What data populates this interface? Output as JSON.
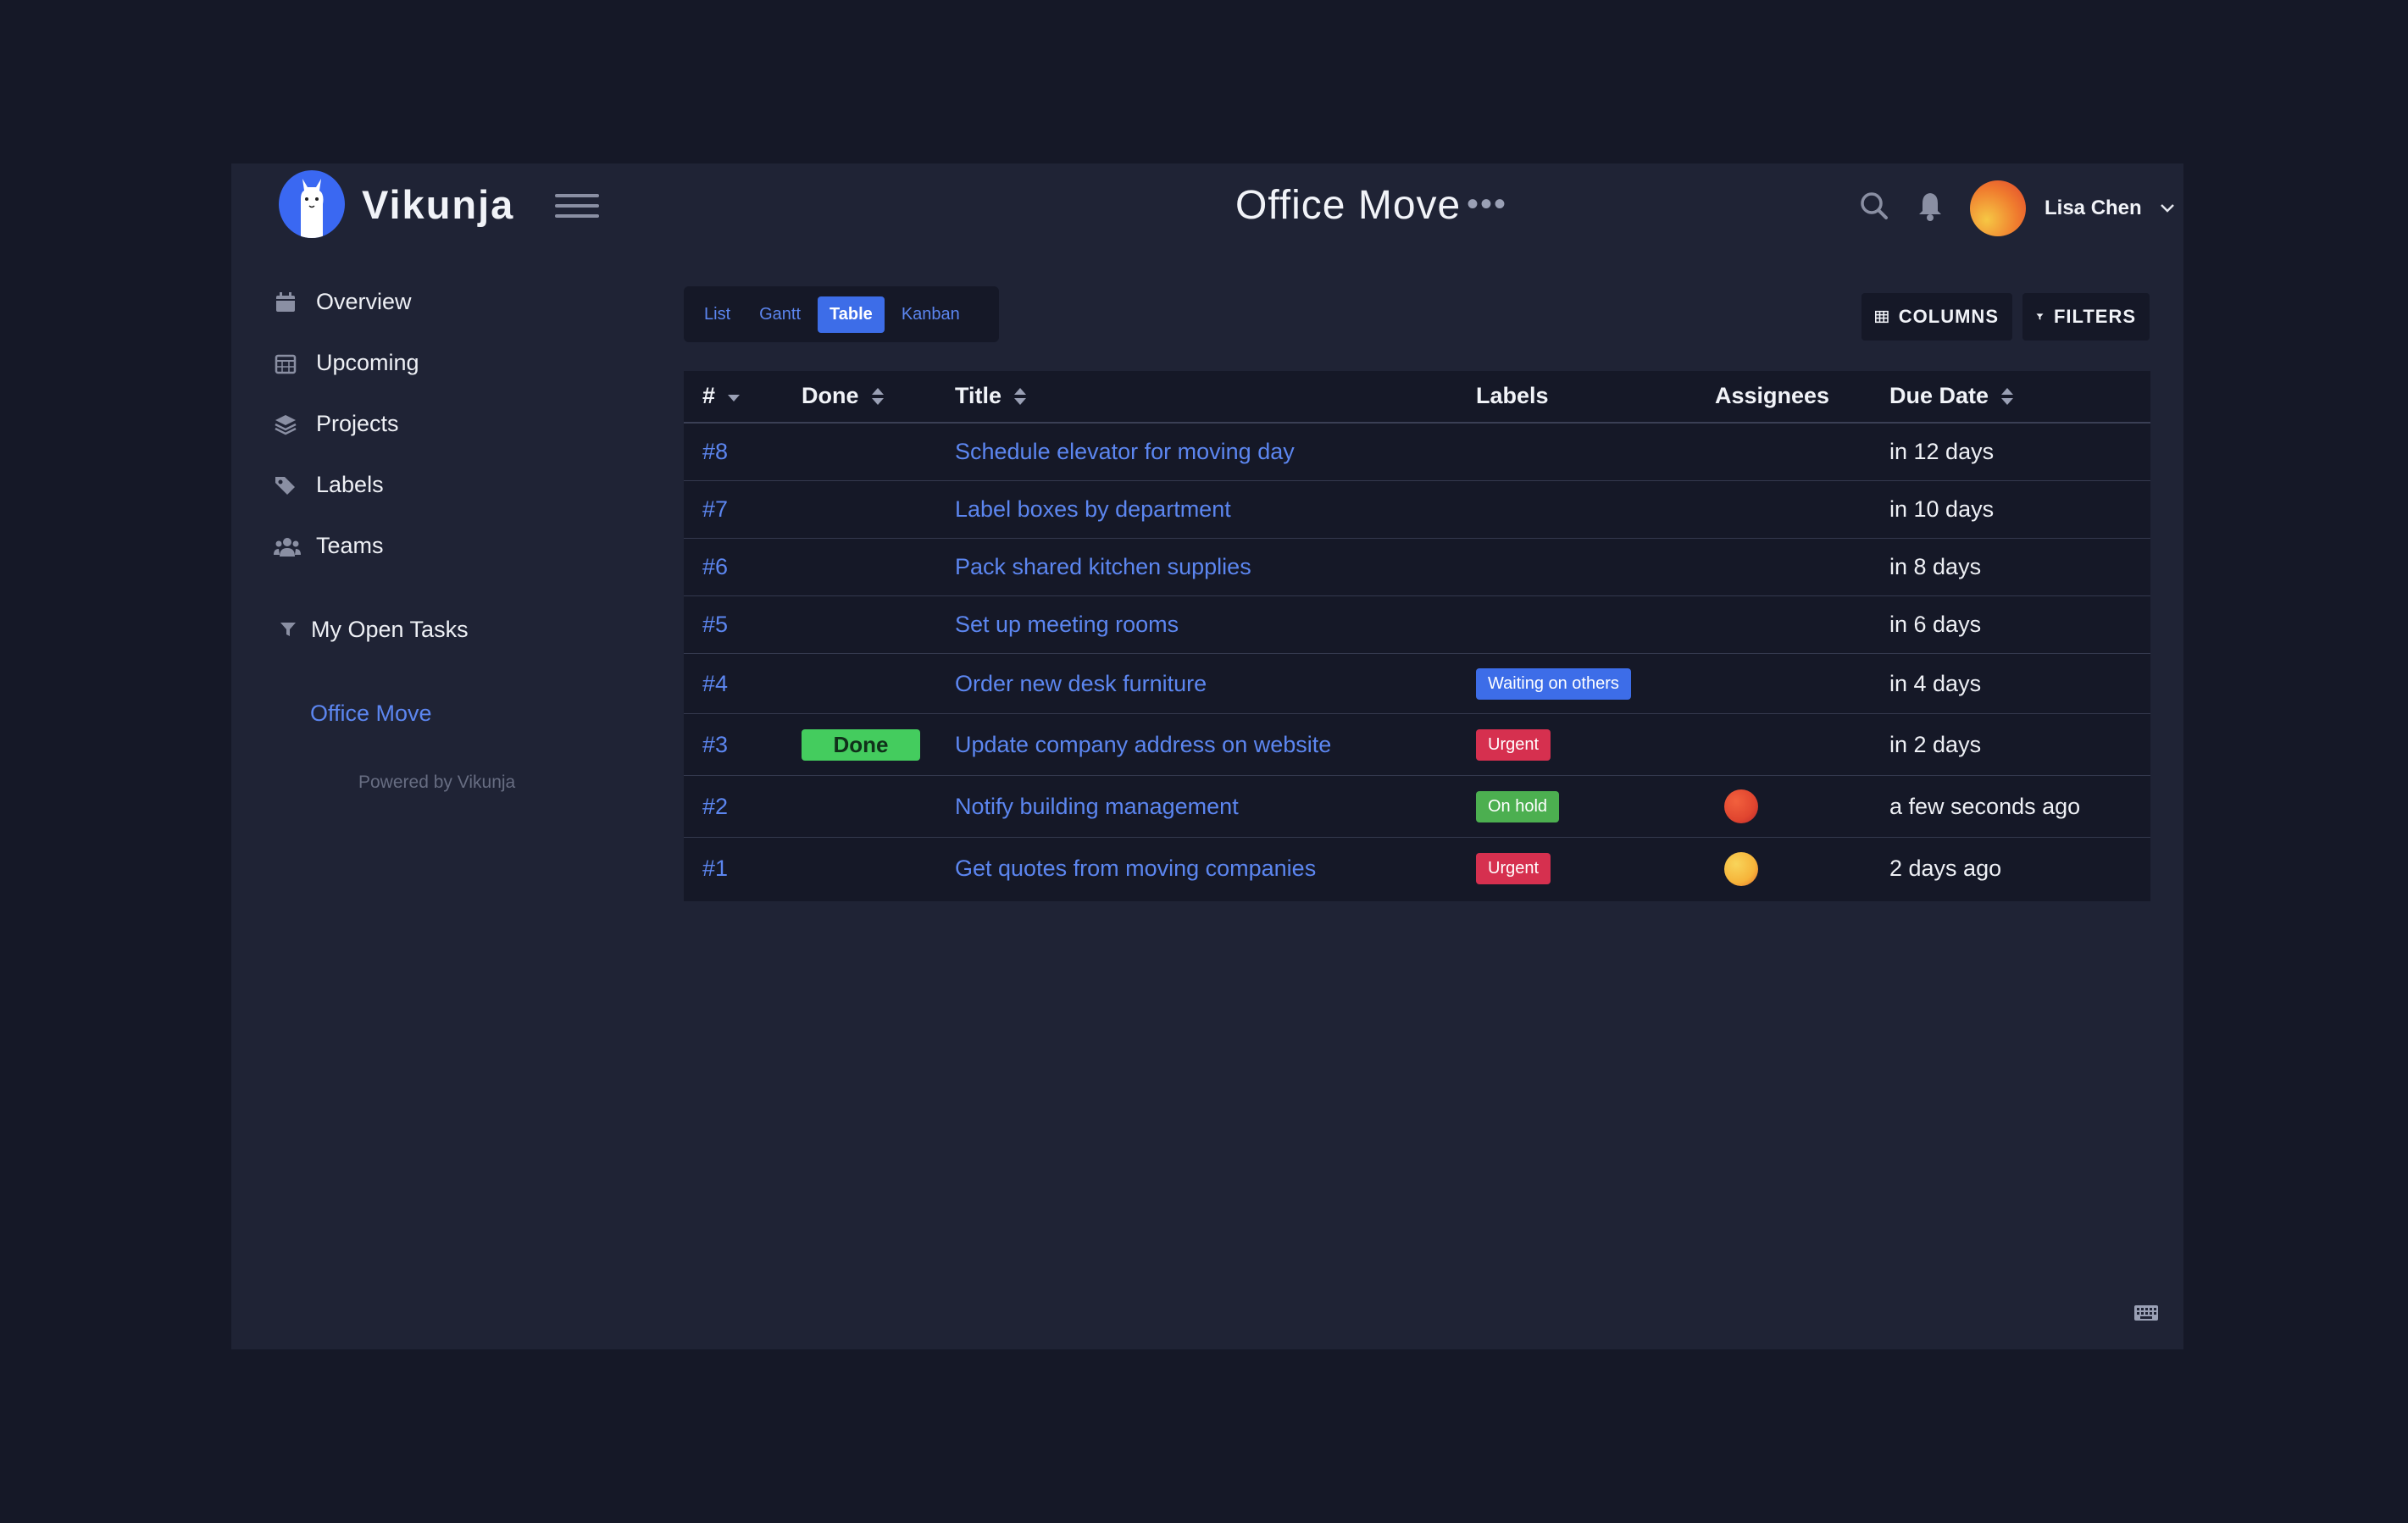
{
  "header": {
    "app_name": "Vikunja",
    "page_title": "Office Move",
    "more_label": "•••",
    "user_name": "Lisa Chen",
    "icons": [
      "search-icon",
      "bell-icon",
      "chevron-down-icon"
    ]
  },
  "sidebar": {
    "items": [
      {
        "label": "Overview",
        "icon": "calendar-icon"
      },
      {
        "label": "Upcoming",
        "icon": "calendar-grid-icon"
      },
      {
        "label": "Projects",
        "icon": "layers-icon"
      },
      {
        "label": "Labels",
        "icon": "tags-icon"
      },
      {
        "label": "Teams",
        "icon": "users-icon"
      }
    ],
    "saved_filter": "My Open Tasks",
    "project": "Office Move",
    "powered_by": "Powered by Vikunja"
  },
  "views": {
    "tabs": [
      "List",
      "Gantt",
      "Table",
      "Kanban"
    ],
    "active": "Table"
  },
  "toolbar": {
    "columns_label": "COLUMNS",
    "filters_label": "FILTERS"
  },
  "table": {
    "headers": {
      "id": "#",
      "done": "Done",
      "title": "Title",
      "labels": "Labels",
      "assignees": "Assignees",
      "due": "Due Date"
    },
    "rows": [
      {
        "id": "#8",
        "done": "",
        "title": "Schedule elevator for moving day",
        "label": "",
        "label_color": "",
        "assignee_color": "",
        "due": "in 12 days"
      },
      {
        "id": "#7",
        "done": "",
        "title": "Label boxes by department",
        "label": "",
        "label_color": "",
        "assignee_color": "",
        "due": "in 10 days"
      },
      {
        "id": "#6",
        "done": "",
        "title": "Pack shared kitchen supplies",
        "label": "",
        "label_color": "",
        "assignee_color": "",
        "due": "in 8 days"
      },
      {
        "id": "#5",
        "done": "",
        "title": "Set up meeting rooms",
        "label": "",
        "label_color": "",
        "assignee_color": "",
        "due": "in 6 days"
      },
      {
        "id": "#4",
        "done": "",
        "title": "Order new desk furniture",
        "label": "Waiting on others",
        "label_color": "#3d6de8",
        "assignee_color": "",
        "due": "in 4 days"
      },
      {
        "id": "#3",
        "done": "Done",
        "title": "Update company address on website",
        "label": "Urgent",
        "label_color": "#d6304f",
        "assignee_color": "",
        "due": "in 2 days"
      },
      {
        "id": "#2",
        "done": "",
        "title": "Notify building management",
        "label": "On hold",
        "label_color": "#4caf50",
        "assignee_color": "#e0452f",
        "due": "a few seconds ago"
      },
      {
        "id": "#1",
        "done": "",
        "title": "Get quotes from moving companies",
        "label": "Urgent",
        "label_color": "#d6304f",
        "assignee_color": "#f6b43a",
        "due": "2 days ago"
      }
    ]
  },
  "colors": {
    "background": "#151827",
    "panel": "#1f2335",
    "accent": "#3d6de8",
    "link": "#5c86f0",
    "done_green": "#44cc5e"
  }
}
